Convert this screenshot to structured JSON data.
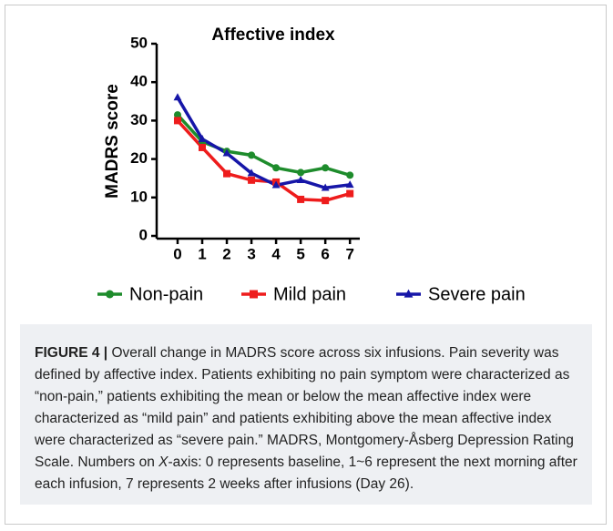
{
  "chart_data": {
    "type": "line",
    "title": "Affective index",
    "ylabel": "MADRS score",
    "x": [
      0,
      1,
      2,
      3,
      4,
      5,
      6,
      7
    ],
    "xlim": [
      -0.85,
      7.4
    ],
    "xticks": [
      0,
      1,
      2,
      3,
      4,
      5,
      6,
      7
    ],
    "ylim": [
      0,
      50
    ],
    "yticks": [
      0,
      10,
      20,
      30,
      40,
      50
    ],
    "legend": "bottom",
    "series": [
      {
        "name": "Non-pain",
        "color": "#1e8c2c",
        "marker": "circle",
        "values": [
          31.5,
          24.5,
          22,
          21,
          17.7,
          16.5,
          17.7,
          15.8
        ]
      },
      {
        "name": "Mild pain",
        "color": "#ee1c1c",
        "marker": "square",
        "values": [
          30,
          23,
          16.2,
          14.5,
          14,
          9.5,
          9.2,
          11
        ]
      },
      {
        "name": "Severe pain",
        "color": "#1616a8",
        "marker": "triangle",
        "values": [
          36,
          25.2,
          21.5,
          16.3,
          13.2,
          14.5,
          12.5,
          13.3
        ]
      }
    ]
  },
  "caption": {
    "label": "FIGURE 4 |",
    "text": [
      " Overall change in MADRS score across six infusions. Pain severity was defined by affective index. Patients exhibiting no pain symptom were characterized as “non-pain,” patients exhibiting the mean or below the mean affective index were characterized as “mild pain” and patients exhibiting above the mean affective index were characterized as “severe pain.” MADRS, Montgomery-Åsberg Depression Rating Scale. Numbers on ",
      "X",
      "-axis: 0 represents baseline, 1~6 represent the next morning after each infusion, 7 represents 2 weeks after infusions (Day 26)."
    ]
  }
}
